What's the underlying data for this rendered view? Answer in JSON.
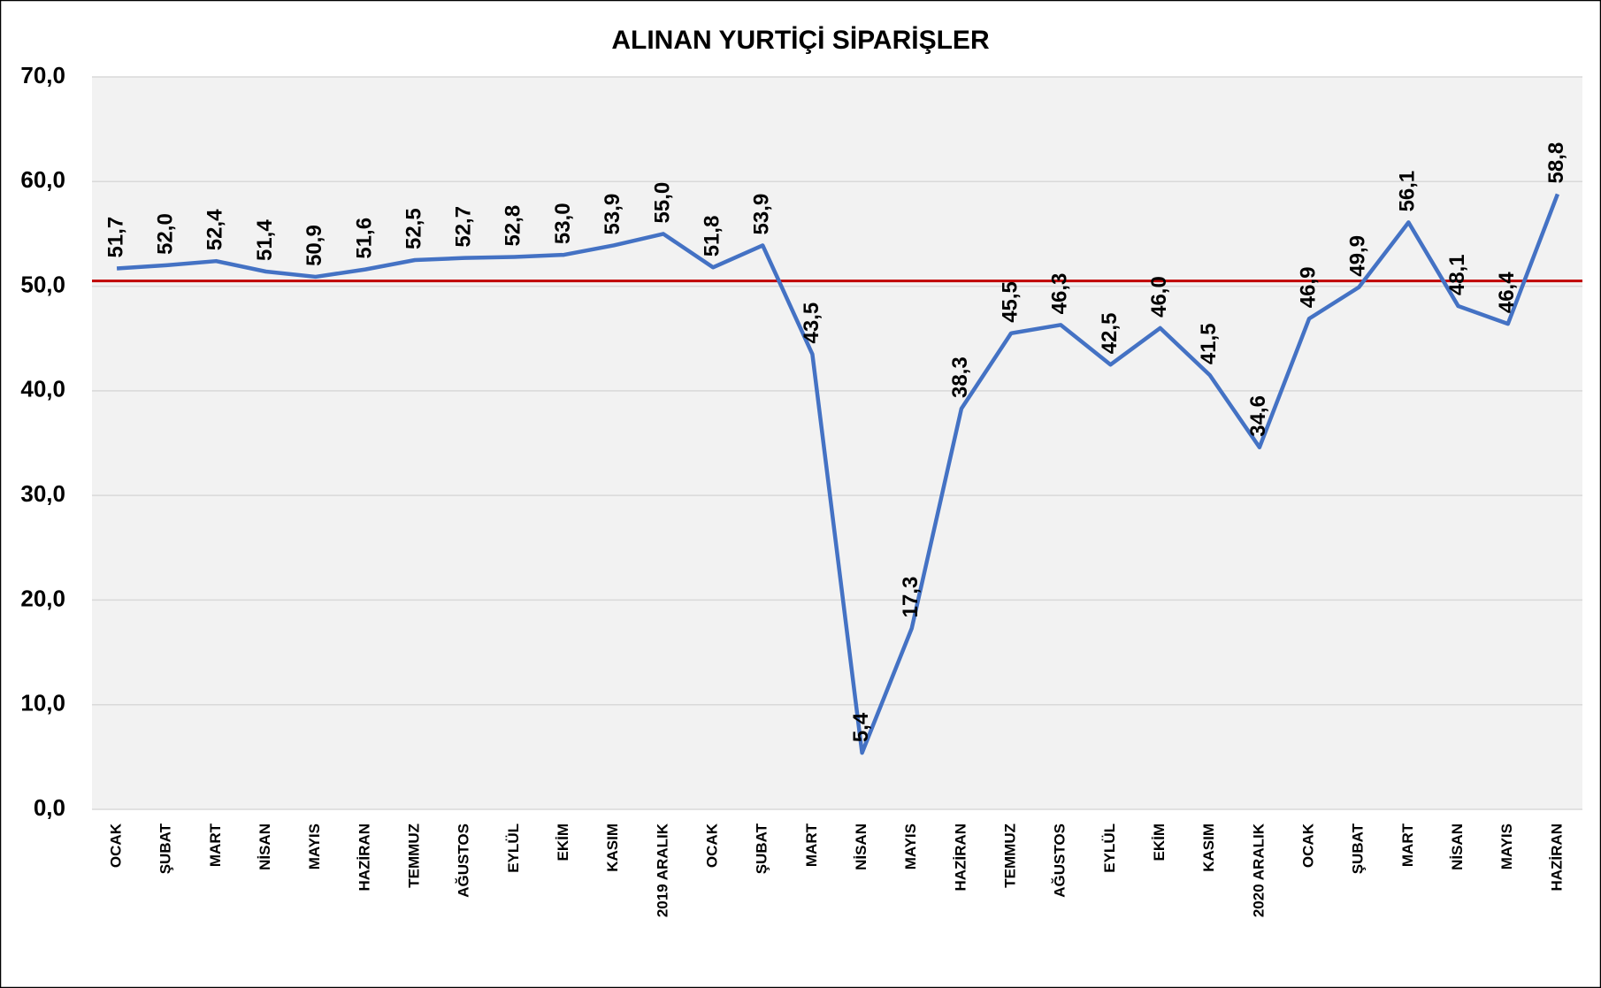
{
  "chart_data": {
    "type": "line",
    "title": "ALINAN YURTİÇİ SİPARİŞLER",
    "categories": [
      "OCAK",
      "ŞUBAT",
      "MART",
      "NİSAN",
      "MAYIS",
      "HAZİRAN",
      "TEMMUZ",
      "AĞUSTOS",
      "EYLÜL",
      "EKİM",
      "KASIM",
      "2019 ARALIK",
      "OCAK",
      "ŞUBAT",
      "MART",
      "NİSAN",
      "MAYIS",
      "HAZİRAN",
      "TEMMUZ",
      "AĞUSTOS",
      "EYLÜL",
      "EKİM",
      "KASIM",
      "2020 ARALIK",
      "OCAK",
      "ŞUBAT",
      "MART",
      "NİSAN",
      "MAYIS",
      "HAZİRAN"
    ],
    "values": [
      51.7,
      52.0,
      52.4,
      51.4,
      50.9,
      51.6,
      52.5,
      52.7,
      52.8,
      53.0,
      53.9,
      55.0,
      51.8,
      53.9,
      43.5,
      5.4,
      17.3,
      38.3,
      45.5,
      46.3,
      42.5,
      46.0,
      41.5,
      34.6,
      46.9,
      49.9,
      56.1,
      48.1,
      46.4,
      58.8
    ],
    "value_labels": [
      "51,7",
      "52,0",
      "52,4",
      "51,4",
      "50,9",
      "51,6",
      "52,5",
      "52,7",
      "52,8",
      "53,0",
      "53,9",
      "55,0",
      "51,8",
      "53,9",
      "43,5",
      "5,4",
      "17,3",
      "38,3",
      "45,5",
      "46,3",
      "42,5",
      "46,0",
      "41,5",
      "34,6",
      "46,9",
      "49,9",
      "56,1",
      "48,1",
      "46,4",
      "58,8"
    ],
    "color": "#4472c4",
    "reference_line": {
      "value": 50.5,
      "color": "#c00000"
    },
    "ylim": [
      0,
      70
    ],
    "yticks": [
      {
        "value": 0,
        "label": "0,0"
      },
      {
        "value": 10,
        "label": "10,0"
      },
      {
        "value": 20,
        "label": "20,0"
      },
      {
        "value": 30,
        "label": "30,0"
      },
      {
        "value": 40,
        "label": "40,0"
      },
      {
        "value": 50,
        "label": "50,0"
      },
      {
        "value": 60,
        "label": "60,0"
      },
      {
        "value": 70,
        "label": "70,0"
      }
    ],
    "grid": true
  }
}
